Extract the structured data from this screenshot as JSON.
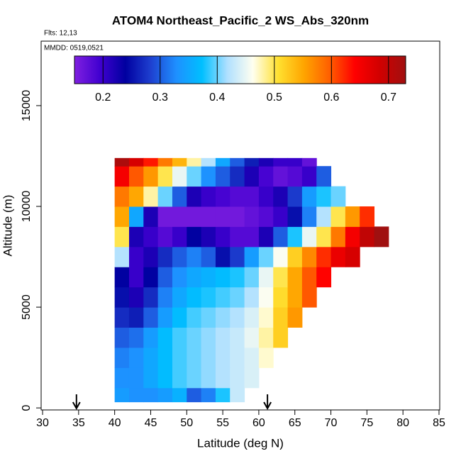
{
  "chart_data": {
    "type": "heatmap",
    "title": "ATOM4 Northeast_Pacific_2 WS_Abs_320nm",
    "flights_label": "Flts: 12,13",
    "dates_label": "MMDD: 0519,0521",
    "x_label": "Latitude (deg N)",
    "y_label": "Altitude (m)",
    "xlim": [
      29.8,
      85.1
    ],
    "ylim": [
      -100,
      18200
    ],
    "xticks": [
      30,
      35,
      40,
      45,
      50,
      55,
      60,
      65,
      70,
      75,
      80,
      85
    ],
    "yticks": [
      0,
      5000,
      10000,
      15000
    ],
    "x_bins": [
      40,
      42,
      44,
      46,
      48,
      50,
      52,
      54,
      56,
      58,
      60,
      62,
      64,
      66,
      68,
      70,
      72,
      74,
      76,
      78
    ],
    "y_bins": [
      300,
      1000,
      2000,
      3000,
      4000,
      5000,
      6000,
      7000,
      8000,
      9000,
      10000,
      11000,
      12000,
      12400
    ],
    "z": [
      [
        0.34,
        0.33,
        0.33,
        0.34,
        0.36,
        0.3,
        0.32,
        0.38,
        0.43,
        null,
        null,
        null,
        null,
        null,
        null,
        null,
        null,
        null,
        null
      ],
      [
        0.33,
        0.33,
        0.35,
        0.37,
        0.39,
        0.4,
        0.41,
        0.42,
        0.43,
        0.44,
        null,
        null,
        null,
        null,
        null,
        null,
        null,
        null,
        null
      ],
      [
        0.32,
        0.33,
        0.35,
        0.37,
        0.39,
        0.4,
        0.41,
        0.42,
        0.43,
        0.44,
        0.47,
        null,
        null,
        null,
        null,
        null,
        null,
        null,
        null
      ],
      [
        0.3,
        0.31,
        0.34,
        0.37,
        0.39,
        0.4,
        0.41,
        0.42,
        0.43,
        0.45,
        0.48,
        0.52,
        null,
        null,
        null,
        null,
        null,
        null,
        null
      ],
      [
        0.27,
        0.26,
        0.3,
        0.34,
        0.37,
        0.39,
        0.4,
        0.41,
        0.42,
        0.44,
        0.47,
        0.52,
        0.56,
        null,
        null,
        null,
        null,
        null,
        null
      ],
      [
        0.25,
        0.22,
        0.27,
        0.32,
        0.35,
        0.37,
        0.38,
        0.39,
        0.4,
        0.42,
        0.46,
        0.51,
        0.55,
        0.6,
        null,
        null,
        null,
        null,
        null
      ],
      [
        0.24,
        0.2,
        0.24,
        0.3,
        0.33,
        0.35,
        0.36,
        0.37,
        0.38,
        0.4,
        0.45,
        0.5,
        0.55,
        0.6,
        0.64,
        null,
        null,
        null,
        null
      ],
      [
        0.42,
        0.2,
        0.22,
        0.27,
        0.3,
        0.32,
        0.3,
        0.25,
        0.28,
        0.34,
        0.4,
        0.46,
        0.52,
        0.57,
        0.62,
        0.66,
        0.68,
        null,
        null
      ],
      [
        0.5,
        0.22,
        0.2,
        0.18,
        0.2,
        0.24,
        0.22,
        0.2,
        0.18,
        0.18,
        0.22,
        0.3,
        0.38,
        0.45,
        0.5,
        0.58,
        0.65,
        0.7,
        0.73
      ],
      [
        0.55,
        0.35,
        0.22,
        0.16,
        0.16,
        0.16,
        0.16,
        0.16,
        0.16,
        0.17,
        0.18,
        0.2,
        0.25,
        0.32,
        0.42,
        0.5,
        0.56,
        0.62,
        null
      ],
      [
        0.58,
        0.55,
        0.48,
        0.4,
        0.3,
        0.22,
        0.2,
        0.19,
        0.18,
        0.18,
        0.2,
        0.22,
        0.28,
        0.34,
        0.38,
        0.4,
        null,
        null,
        null
      ],
      [
        0.65,
        0.6,
        0.56,
        0.5,
        0.45,
        0.4,
        0.33,
        0.3,
        0.27,
        0.22,
        0.19,
        0.17,
        0.18,
        0.2,
        0.3,
        null,
        null,
        null,
        null
      ],
      [
        0.72,
        0.68,
        0.63,
        0.58,
        0.54,
        0.48,
        0.42,
        0.35,
        0.3,
        0.26,
        0.22,
        0.2,
        0.2,
        0.17,
        null,
        null,
        null,
        null,
        null
      ]
    ],
    "clim": [
      0.15,
      0.73
    ],
    "cticks": [
      0.2,
      0.3,
      0.4,
      0.5,
      0.6,
      0.7
    ],
    "colorscale": [
      "#8020e0",
      "#4000d0",
      "#0000a0",
      "#1e40d0",
      "#1e90ff",
      "#00bfff",
      "#b0e0ff",
      "#fffff0",
      "#ffe030",
      "#ffa500",
      "#ff6000",
      "#ff0000",
      "#d00000",
      "#a01010"
    ],
    "arrows_x": [
      34.7,
      61.2
    ]
  }
}
